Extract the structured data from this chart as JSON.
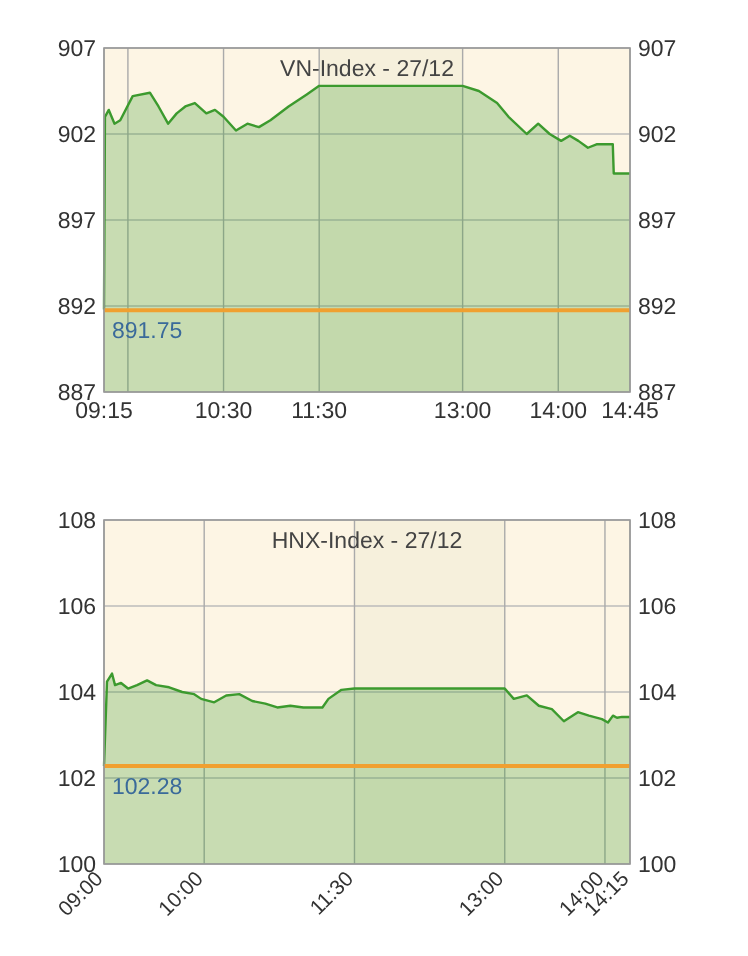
{
  "chart_data": [
    {
      "type": "area",
      "title": "VN-Index - 27/12",
      "x": [
        9.25,
        9.26,
        9.3,
        9.36,
        9.42,
        9.55,
        9.73,
        9.82,
        9.92,
        10.01,
        10.1,
        10.2,
        10.32,
        10.41,
        10.5,
        10.63,
        10.75,
        10.87,
        10.99,
        11.18,
        11.37,
        11.5,
        13.0,
        13.17,
        13.36,
        13.48,
        13.67,
        13.79,
        13.91,
        14.03,
        14.12,
        14.21,
        14.31,
        14.4,
        14.57,
        14.58,
        14.75
      ],
      "series": [
        {
          "color": "#3c9a2e",
          "values": [
            891.8,
            903.0,
            903.4,
            902.6,
            902.8,
            904.2,
            904.4,
            903.6,
            902.6,
            903.2,
            903.6,
            903.8,
            903.2,
            903.4,
            903.0,
            902.2,
            902.6,
            902.4,
            902.8,
            903.6,
            904.3,
            904.8,
            904.8,
            904.5,
            903.8,
            903.0,
            902.0,
            902.6,
            902.0,
            901.6,
            901.9,
            901.6,
            901.2,
            901.4,
            901.4,
            899.7,
            899.7
          ]
        }
      ],
      "xlim": [
        9.25,
        14.75
      ],
      "xticks": [
        {
          "value": 9.25,
          "label": "09:15"
        },
        {
          "value": 9.5,
          "label": null
        },
        {
          "value": 10.5,
          "label": "10:30"
        },
        {
          "value": 11.5,
          "label": "11:30"
        },
        {
          "value": 13,
          "label": "13:00"
        },
        {
          "value": 14,
          "label": "14:00"
        },
        {
          "value": 14.75,
          "label": "14:45"
        }
      ],
      "ylim": [
        887,
        907
      ],
      "yticks": [
        887,
        892,
        897,
        902,
        907
      ],
      "y2lim": [
        887,
        907
      ],
      "y2ticks": [
        887,
        892,
        897,
        902,
        907
      ],
      "ref_lines": [
        {
          "axis": "y",
          "value": 891.75,
          "label": "891.75",
          "color": "#f0a030"
        }
      ],
      "bands": [
        {
          "axis": "x",
          "from": 11.5,
          "to": 13,
          "color": "#f6f0dc"
        }
      ],
      "grid": true
    },
    {
      "type": "area",
      "title": "HNX-Index - 27/12",
      "x": [
        9,
        9.03,
        9.08,
        9.11,
        9.17,
        9.24,
        9.33,
        9.43,
        9.52,
        9.65,
        9.78,
        9.9,
        9.97,
        10.1,
        10.22,
        10.35,
        10.48,
        10.61,
        10.73,
        10.86,
        10.99,
        11.18,
        11.24,
        11.37,
        11.5,
        13.0,
        13.09,
        13.22,
        13.34,
        13.47,
        13.59,
        13.73,
        13.84,
        13.97,
        14.03,
        14.08,
        14.12,
        14.17,
        14.25
      ],
      "series": [
        {
          "color": "#3c9a2e",
          "values": [
            102.28,
            104.24,
            104.43,
            104.16,
            104.21,
            104.08,
            104.16,
            104.27,
            104.16,
            104.11,
            104.0,
            103.95,
            103.84,
            103.76,
            103.92,
            103.95,
            103.79,
            103.73,
            103.64,
            103.68,
            103.64,
            103.64,
            103.84,
            104.05,
            104.08,
            104.08,
            103.84,
            103.92,
            103.68,
            103.6,
            103.32,
            103.53,
            103.45,
            103.37,
            103.29,
            103.45,
            103.4,
            103.42,
            103.42
          ]
        }
      ],
      "xlim": [
        9,
        14.25
      ],
      "xticks": [
        {
          "value": 9,
          "label": "09:00"
        },
        {
          "value": 10,
          "label": "10:00"
        },
        {
          "value": 11.5,
          "label": "11:30"
        },
        {
          "value": 13,
          "label": "13:00"
        },
        {
          "value": 14,
          "label": "14:00"
        },
        {
          "value": 14.25,
          "label": "14:15"
        }
      ],
      "ylim": [
        100,
        108
      ],
      "yticks": [
        100,
        102,
        104,
        106,
        108
      ],
      "y2lim": [
        100,
        108
      ],
      "y2ticks": [
        100,
        102,
        104,
        106,
        108
      ],
      "ref_lines": [
        {
          "axis": "y",
          "value": 102.28,
          "label": "102.28",
          "color": "#f0a030"
        }
      ],
      "bands": [
        {
          "axis": "x",
          "from": 11.5,
          "to": 13,
          "color": "#f6f0dc"
        }
      ],
      "grid": true
    }
  ]
}
